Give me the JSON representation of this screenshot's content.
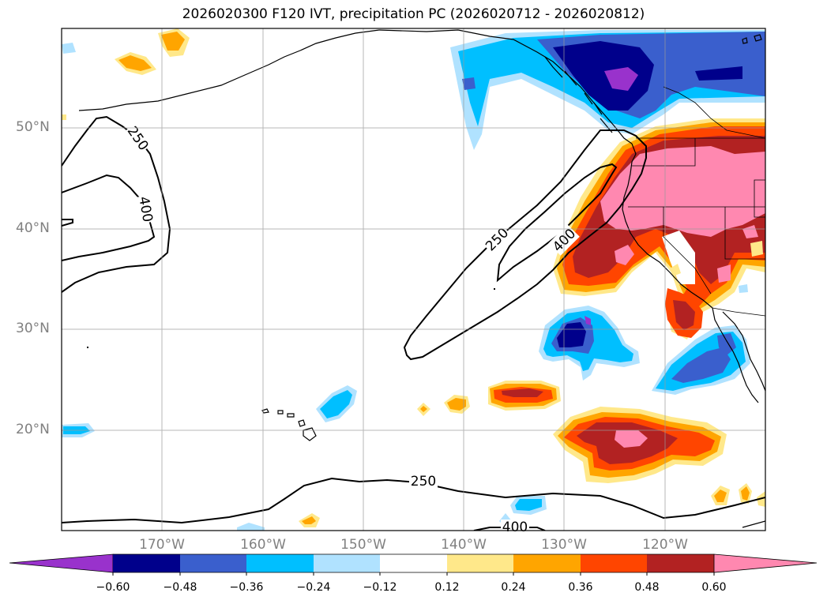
{
  "title": "2026020300 F120 IVT, precipitation PC (2026020712 - 2026020812)",
  "map": {
    "lat_labels": [
      "50°N",
      "40°N",
      "30°N",
      "20°N"
    ],
    "lon_labels": [
      "170°W",
      "160°W",
      "150°W",
      "140°W",
      "130°W",
      "120°W"
    ],
    "contour_labels": [
      "250",
      "400",
      "250",
      "400",
      "250",
      "400"
    ]
  },
  "colorbar": {
    "ticks": [
      "−0.60",
      "−0.48",
      "−0.36",
      "−0.24",
      "−0.12",
      "0.12",
      "0.24",
      "0.36",
      "0.48",
      "0.60"
    ],
    "colors": [
      "#9932cc",
      "#00008b",
      "#3a5fcd",
      "#00bfff",
      "#b0e2ff",
      "#ffffff",
      "#ffe88a",
      "#ffa500",
      "#ff4500",
      "#b22222",
      "#ff88b0"
    ]
  },
  "colors": {
    "purple": "#9932cc",
    "navy": "#00008b",
    "royal": "#3a5fcd",
    "sky": "#00bfff",
    "light_blue": "#b0e2ff",
    "yellow": "#ffe88a",
    "orange": "#ffa500",
    "red_orange": "#ff4500",
    "dark_red": "#b22222",
    "pink": "#ff88b0"
  }
}
